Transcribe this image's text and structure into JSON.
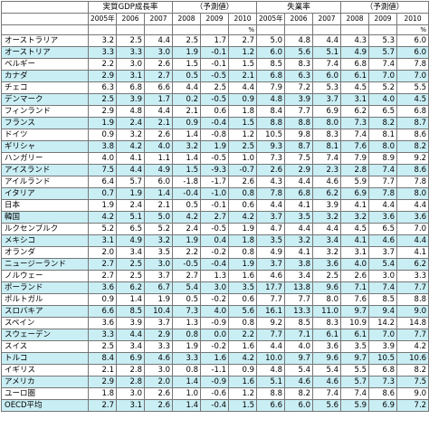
{
  "headers": {
    "group1": "実質GDP成長率",
    "group2": "（予測値）",
    "group3": "失業率",
    "group4": "（予測値）",
    "years": [
      "2005年",
      "2006",
      "2007",
      "2008",
      "2009",
      "2010",
      "2005年",
      "2006",
      "2007",
      "2008",
      "2009",
      "2010"
    ]
  },
  "unit": "%",
  "rows": [
    {
      "country": "オーストラリア",
      "values": [
        "3.2",
        "2.5",
        "4.4",
        "2.5",
        "1.7",
        "2.7",
        "5.0",
        "4.8",
        "4.4",
        "4.3",
        "5.3",
        "6.0"
      ]
    },
    {
      "country": "オーストリア",
      "values": [
        "3.3",
        "3.3",
        "3.0",
        "1.9",
        "-0.1",
        "1.2",
        "6.0",
        "5.6",
        "5.1",
        "4.9",
        "5.7",
        "6.0"
      ]
    },
    {
      "country": "ベルギー",
      "values": [
        "2.2",
        "3.0",
        "2.6",
        "1.5",
        "-0.1",
        "1.5",
        "8.5",
        "8.3",
        "7.4",
        "6.8",
        "7.4",
        "7.8"
      ]
    },
    {
      "country": "カナダ",
      "values": [
        "2.9",
        "3.1",
        "2.7",
        "0.5",
        "-0.5",
        "2.1",
        "6.8",
        "6.3",
        "6.0",
        "6.1",
        "7.0",
        "7.0"
      ]
    },
    {
      "country": "チェコ",
      "values": [
        "6.3",
        "6.8",
        "6.6",
        "4.4",
        "2.5",
        "4.4",
        "7.9",
        "7.2",
        "5.3",
        "4.5",
        "5.2",
        "5.5"
      ]
    },
    {
      "country": "デンマーク",
      "values": [
        "2.5",
        "3.9",
        "1.7",
        "0.2",
        "-0.5",
        "0.9",
        "4.8",
        "3.9",
        "3.7",
        "3.1",
        "4.0",
        "4.5"
      ]
    },
    {
      "country": "フィンランド",
      "values": [
        "2.9",
        "4.8",
        "4.4",
        "2.1",
        "0.6",
        "1.8",
        "8.4",
        "7.7",
        "6.9",
        "6.2",
        "6.5",
        "6.8"
      ]
    },
    {
      "country": "フランス",
      "values": [
        "1.9",
        "2.4",
        "2.1",
        "0.9",
        "-0.4",
        "1.5",
        "8.8",
        "8.8",
        "8.0",
        "7.3",
        "8.2",
        "8.7"
      ]
    },
    {
      "country": "ドイツ",
      "values": [
        "0.9",
        "3.2",
        "2.6",
        "1.4",
        "-0.8",
        "1.2",
        "10.5",
        "9.8",
        "8.3",
        "7.4",
        "8.1",
        "8.6"
      ]
    },
    {
      "country": "ギリシャ",
      "values": [
        "3.8",
        "4.2",
        "4.0",
        "3.2",
        "1.9",
        "2.5",
        "9.3",
        "8.7",
        "8.1",
        "7.6",
        "8.0",
        "8.2"
      ]
    },
    {
      "country": "ハンガリー",
      "values": [
        "4.0",
        "4.1",
        "1.1",
        "1.4",
        "-0.5",
        "1.0",
        "7.3",
        "7.5",
        "7.4",
        "7.9",
        "8.9",
        "9.2"
      ]
    },
    {
      "country": "アイスランド",
      "values": [
        "7.5",
        "4.4",
        "4.9",
        "1.5",
        "-9.3",
        "-0.7",
        "2.6",
        "2.9",
        "2.3",
        "2.8",
        "7.4",
        "8.6"
      ]
    },
    {
      "country": "アイルランド",
      "values": [
        "6.4",
        "5.7",
        "6.0",
        "-1.8",
        "-1.7",
        "2.6",
        "4.3",
        "4.4",
        "4.6",
        "5.9",
        "7.7",
        "7.8"
      ]
    },
    {
      "country": "イタリア",
      "values": [
        "0.7",
        "1.9",
        "1.4",
        "-0.4",
        "-1.0",
        "0.8",
        "7.8",
        "6.8",
        "6.2",
        "6.9",
        "7.8",
        "8.0"
      ]
    },
    {
      "country": "日本",
      "values": [
        "1.9",
        "2.4",
        "2.1",
        "0.5",
        "-0.1",
        "0.6",
        "4.4",
        "4.1",
        "3.9",
        "4.1",
        "4.4",
        "4.4"
      ]
    },
    {
      "country": "韓国",
      "values": [
        "4.2",
        "5.1",
        "5.0",
        "4.2",
        "2.7",
        "4.2",
        "3.7",
        "3.5",
        "3.2",
        "3.2",
        "3.6",
        "3.6"
      ]
    },
    {
      "country": "ルクセンブルク",
      "values": [
        "5.2",
        "6.5",
        "5.2",
        "2.4",
        "-0.5",
        "1.9",
        "4.7",
        "4.4",
        "4.4",
        "4.5",
        "6.5",
        "7.0"
      ]
    },
    {
      "country": "メキシコ",
      "values": [
        "3.1",
        "4.9",
        "3.2",
        "1.9",
        "0.4",
        "1.8",
        "3.5",
        "3.2",
        "3.4",
        "4.1",
        "4.6",
        "4.4"
      ]
    },
    {
      "country": "オランダ",
      "values": [
        "2.0",
        "3.4",
        "3.5",
        "2.2",
        "-0.2",
        "0.8",
        "4.9",
        "4.1",
        "3.2",
        "3.1",
        "3.7",
        "4.1"
      ]
    },
    {
      "country": "ニュージーランド",
      "values": [
        "2.7",
        "2.5",
        "3.0",
        "-0.5",
        "-0.4",
        "1.9",
        "3.7",
        "3.8",
        "3.6",
        "4.0",
        "5.4",
        "6.2"
      ]
    },
    {
      "country": "ノルウェー",
      "values": [
        "2.7",
        "2.5",
        "3.7",
        "2.7",
        "1.3",
        "1.6",
        "4.6",
        "3.4",
        "2.5",
        "2.6",
        "3.0",
        "3.3"
      ]
    },
    {
      "country": "ポーランド",
      "values": [
        "3.6",
        "6.2",
        "6.7",
        "5.4",
        "3.0",
        "3.5",
        "17.7",
        "13.8",
        "9.6",
        "7.1",
        "7.4",
        "7.7"
      ]
    },
    {
      "country": "ポルトガル",
      "values": [
        "0.9",
        "1.4",
        "1.9",
        "0.5",
        "-0.2",
        "0.6",
        "7.7",
        "7.7",
        "8.0",
        "7.6",
        "8.5",
        "8.8"
      ]
    },
    {
      "country": "スロバキア",
      "values": [
        "6.6",
        "8.5",
        "10.4",
        "7.3",
        "4.0",
        "5.6",
        "16.1",
        "13.3",
        "11.0",
        "9.7",
        "9.4",
        "9.0"
      ]
    },
    {
      "country": "スペイン",
      "values": [
        "3.6",
        "3.9",
        "3.7",
        "1.3",
        "-0.9",
        "0.8",
        "9.2",
        "8.5",
        "8.3",
        "10.9",
        "14.2",
        "14.8"
      ]
    },
    {
      "country": "スウェーデン",
      "values": [
        "3.3",
        "4.4",
        "2.9",
        "0.8",
        "0.0",
        "2.2",
        "7.7",
        "7.1",
        "6.1",
        "6.1",
        "7.0",
        "7.7"
      ]
    },
    {
      "country": "スイス",
      "values": [
        "2.5",
        "3.4",
        "3.3",
        "1.9",
        "-0.2",
        "1.6",
        "4.4",
        "4.0",
        "3.6",
        "3.5",
        "3.9",
        "4.2"
      ]
    },
    {
      "country": "トルコ",
      "values": [
        "8.4",
        "6.9",
        "4.6",
        "3.3",
        "1.6",
        "4.2",
        "10.0",
        "9.7",
        "9.6",
        "9.7",
        "10.5",
        "10.6"
      ]
    },
    {
      "country": "イギリス",
      "values": [
        "2.1",
        "2.8",
        "3.0",
        "0.8",
        "-1.1",
        "0.9",
        "4.8",
        "5.4",
        "5.4",
        "5.5",
        "6.8",
        "8.2"
      ]
    },
    {
      "country": "アメリカ",
      "values": [
        "2.9",
        "2.8",
        "2.0",
        "1.4",
        "-0.9",
        "1.6",
        "5.1",
        "4.6",
        "4.6",
        "5.7",
        "7.3",
        "7.5"
      ]
    },
    {
      "country": "ユーロ圏",
      "values": [
        "1.8",
        "3.0",
        "2.6",
        "1.0",
        "-0.6",
        "1.2",
        "8.8",
        "8.2",
        "7.4",
        "7.4",
        "8.6",
        "9.0"
      ]
    },
    {
      "country": "OECD平均",
      "values": [
        "2.7",
        "3.1",
        "2.6",
        "1.4",
        "-0.4",
        "1.5",
        "6.6",
        "6.0",
        "5.6",
        "5.9",
        "6.9",
        "7.2"
      ]
    }
  ]
}
